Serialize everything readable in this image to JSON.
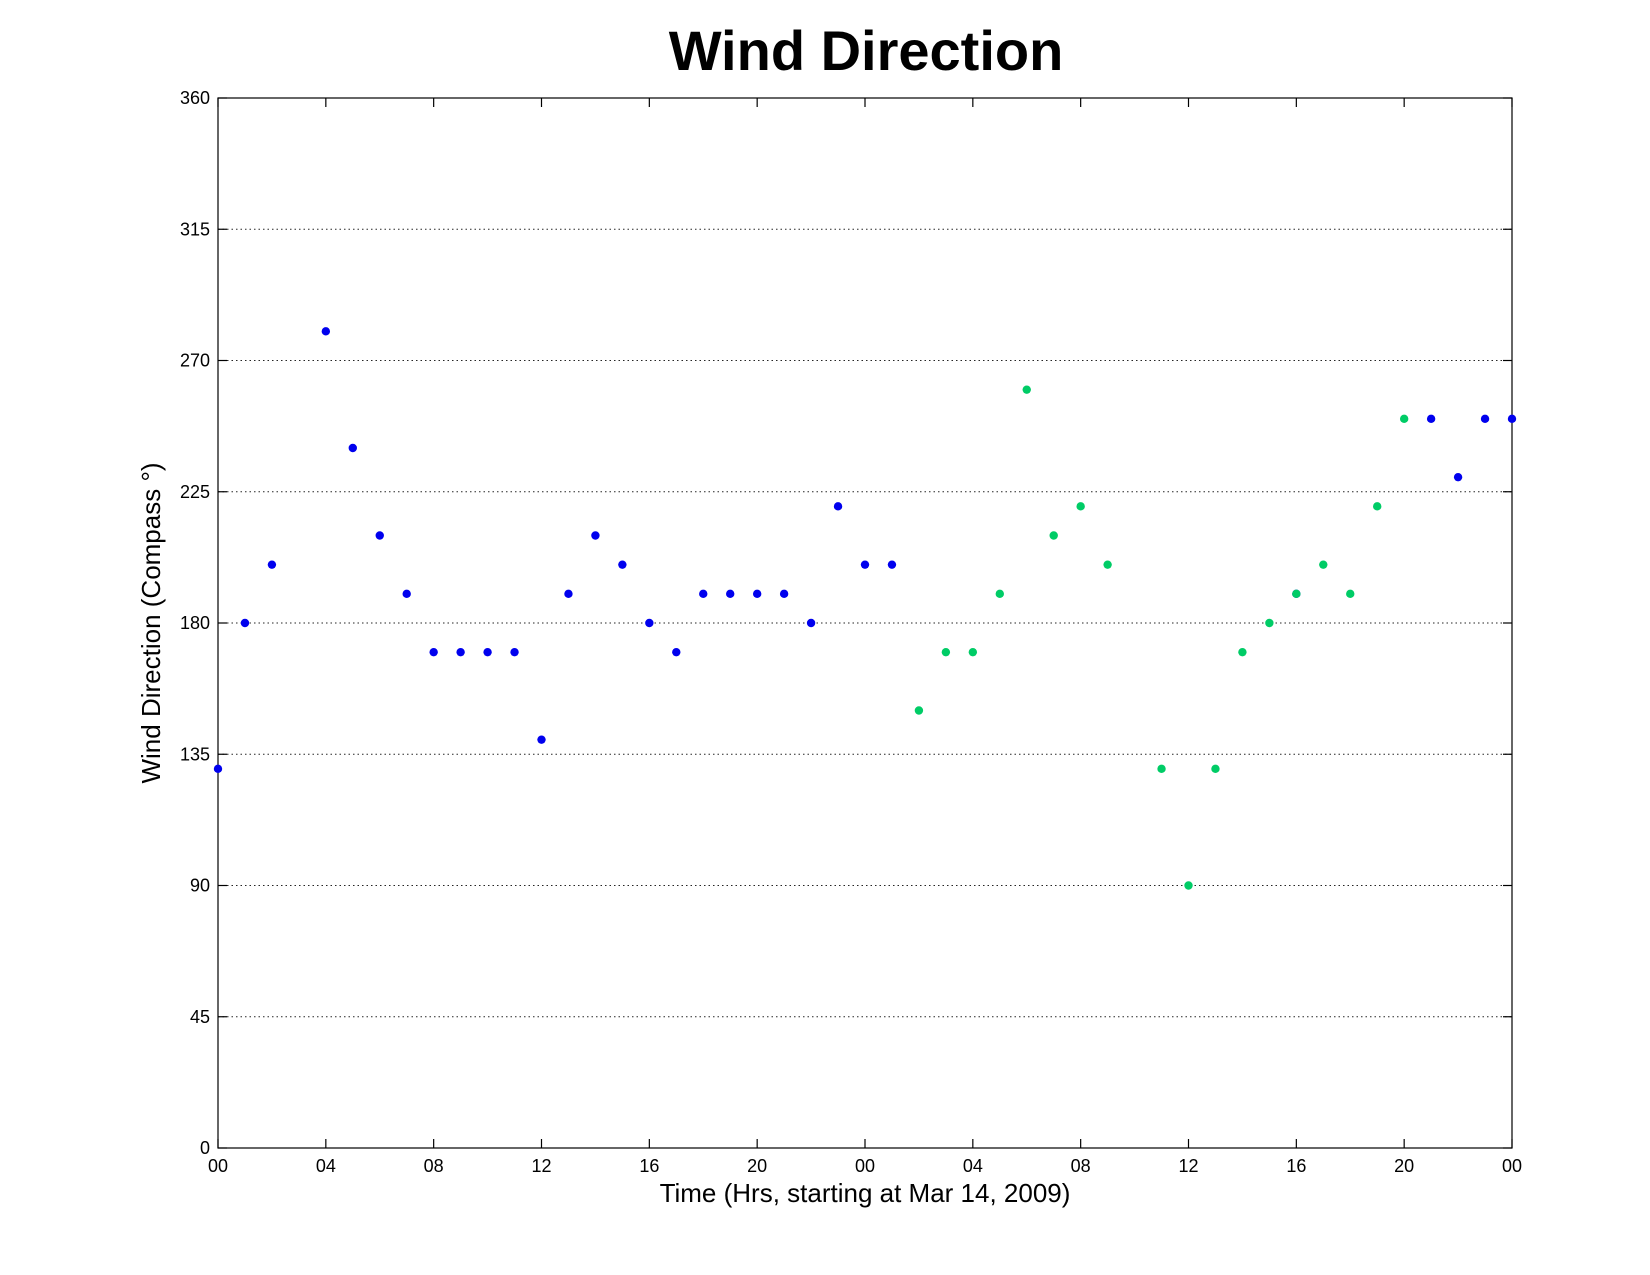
{
  "chart_data": {
    "type": "scatter",
    "title": "Wind Direction",
    "xlabel": "Time (Hrs, starting at Mar 14, 2009)",
    "ylabel": "Wind Direction (Compass  °)",
    "xlim": [
      0,
      48
    ],
    "ylim": [
      0,
      360
    ],
    "yticks": [
      0,
      45,
      90,
      135,
      180,
      225,
      270,
      315,
      360
    ],
    "xticks": [
      0,
      4,
      8,
      12,
      16,
      20,
      24,
      28,
      32,
      36,
      40,
      44,
      48
    ],
    "xtick_labels": [
      "00",
      "04",
      "08",
      "12",
      "16",
      "20",
      "00",
      "04",
      "08",
      "12",
      "16",
      "20",
      "00"
    ],
    "grid": "y",
    "series": [
      {
        "color": "#0000ee",
        "x": [
          0,
          1,
          2,
          4,
          5,
          6,
          7,
          8,
          9,
          10,
          11,
          12,
          13,
          14,
          15,
          16,
          17,
          18,
          19,
          20,
          21,
          22,
          23,
          24,
          25,
          40,
          45,
          46,
          47,
          48
        ],
        "y": [
          130,
          180,
          200,
          280,
          240,
          210,
          190,
          170,
          170,
          170,
          170,
          140,
          190,
          210,
          200,
          180,
          170,
          190,
          190,
          190,
          190,
          180,
          220,
          200,
          200,
          190,
          250,
          230,
          250,
          250
        ]
      },
      {
        "color": "#00cc66",
        "x": [
          26,
          27,
          28,
          29,
          30,
          31,
          32,
          33,
          35,
          36,
          37,
          38,
          39,
          40,
          41,
          42,
          43,
          44
        ],
        "y": [
          150,
          170,
          170,
          190,
          260,
          210,
          220,
          200,
          130,
          90,
          130,
          170,
          180,
          190,
          200,
          190,
          220,
          250
        ]
      }
    ]
  }
}
